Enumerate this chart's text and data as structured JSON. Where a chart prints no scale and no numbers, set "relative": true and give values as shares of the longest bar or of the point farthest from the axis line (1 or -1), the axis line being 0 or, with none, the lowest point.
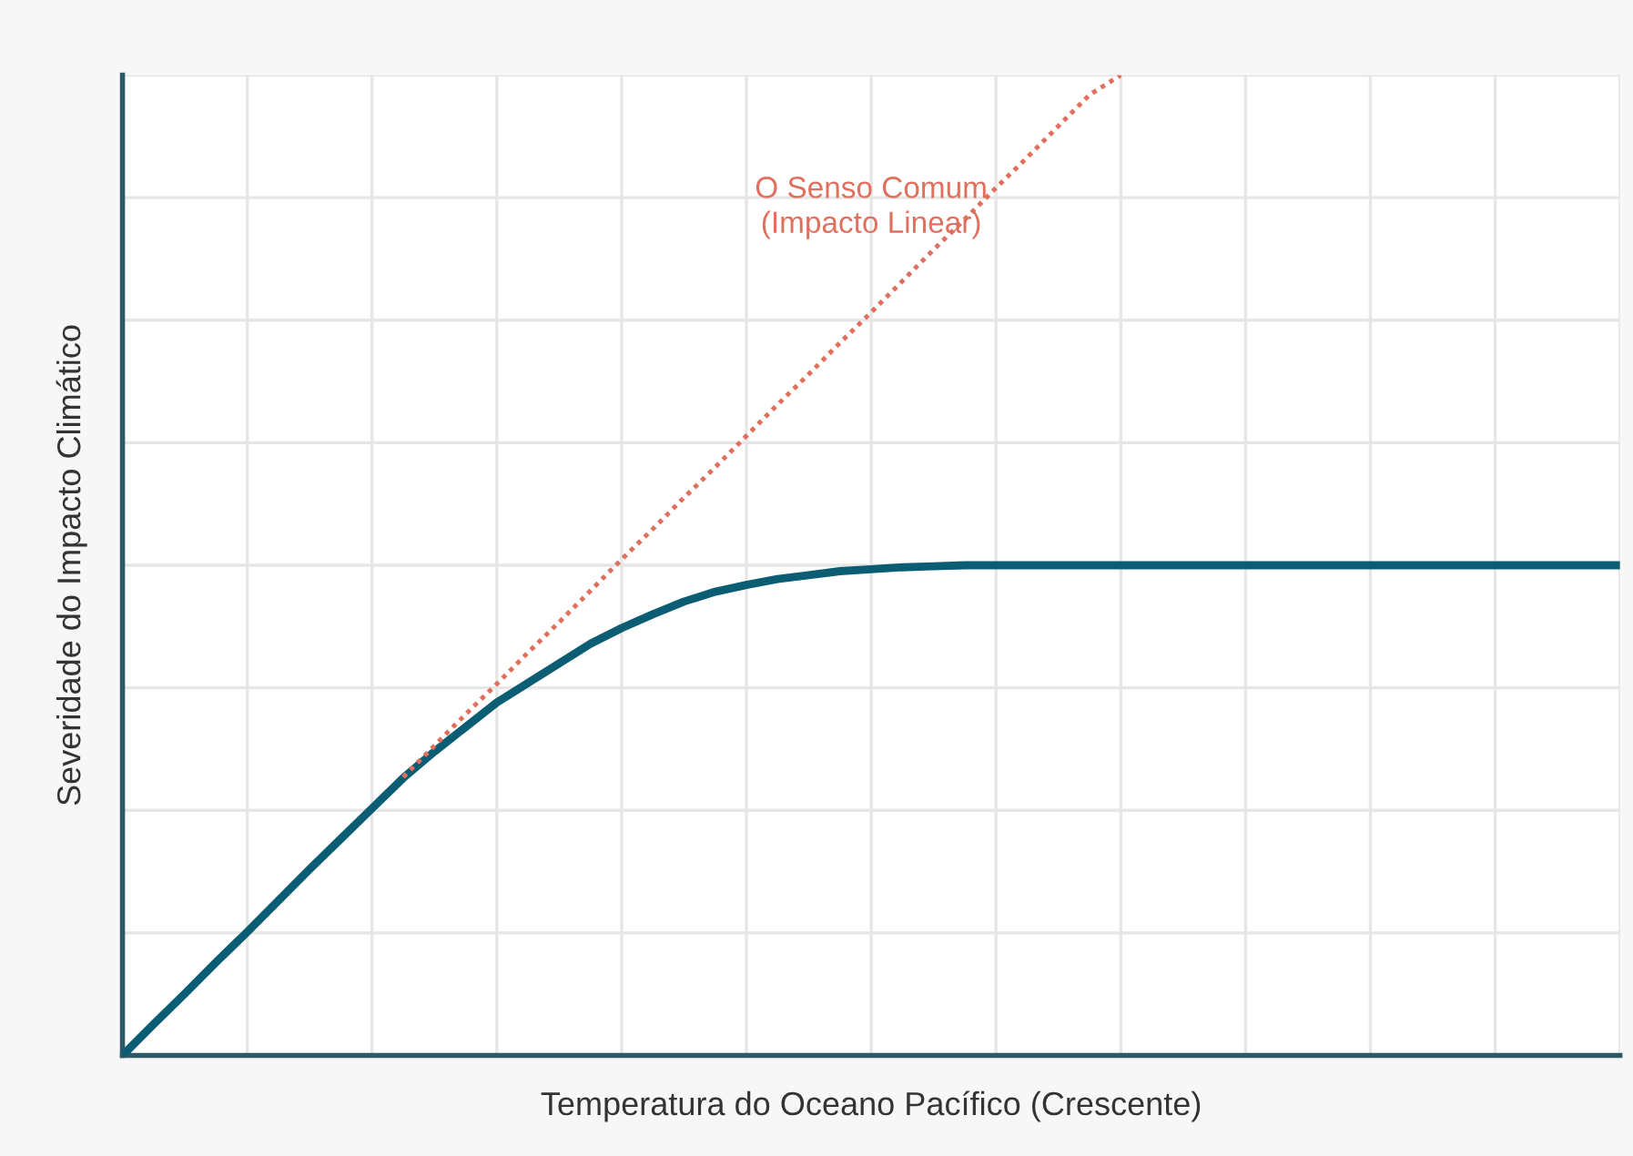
{
  "chart_data": {
    "type": "line",
    "relative": true,
    "xlabel": "Temperatura do Oceano Pacífico (Crescente)",
    "ylabel": "Severidade do Impacto Climático",
    "categories": [
      null,
      null,
      null,
      null,
      null,
      null,
      null,
      null,
      null,
      null,
      null,
      null,
      null,
      null,
      null,
      null,
      null,
      null,
      null,
      null,
      null,
      null,
      null,
      null,
      null,
      null,
      null,
      null,
      null,
      null,
      null,
      null,
      null,
      null,
      null,
      null,
      null,
      null,
      null,
      null,
      null,
      null,
      null,
      null,
      null,
      null,
      null,
      null,
      null
    ],
    "series": [
      {
        "name": "O Senso Comum\n(Impacto Linear)",
        "color": "#e0705e",
        "line_style": "dotted",
        "values": [
          null,
          null,
          null,
          null,
          null,
          null,
          null,
          null,
          null,
          0.284,
          0.316,
          0.348,
          0.379,
          0.411,
          0.442,
          0.474,
          0.506,
          0.537,
          0.569,
          0.6,
          0.632,
          0.664,
          0.695,
          0.727,
          0.758,
          0.79,
          0.822,
          0.853,
          0.885,
          0.916,
          0.948,
          0.98,
          1,
          null,
          null,
          null,
          null,
          null,
          null,
          null,
          null,
          null,
          null,
          null,
          null,
          null,
          null,
          null,
          null
        ]
      },
      {
        "color": "#0b5d73",
        "line_style": "solid",
        "values": [
          0,
          0.032,
          0.063,
          0.095,
          0.126,
          0.158,
          0.19,
          0.221,
          0.252,
          0.283,
          0.31,
          0.335,
          0.36,
          0.38,
          0.4,
          0.42,
          0.436,
          0.45,
          0.463,
          0.473,
          0.48,
          0.486,
          0.49,
          0.494,
          0.496,
          0.498,
          0.499,
          0.5,
          0.5,
          0.5,
          0.5,
          0.5,
          0.5,
          0.5,
          0.5,
          0.5,
          0.5,
          0.5,
          0.5,
          0.5,
          0.5,
          0.5,
          0.5,
          0.5,
          0.5,
          0.5,
          0.5,
          0.5,
          0.5
        ]
      }
    ],
    "grid": true,
    "legend": false,
    "marker": "none"
  }
}
